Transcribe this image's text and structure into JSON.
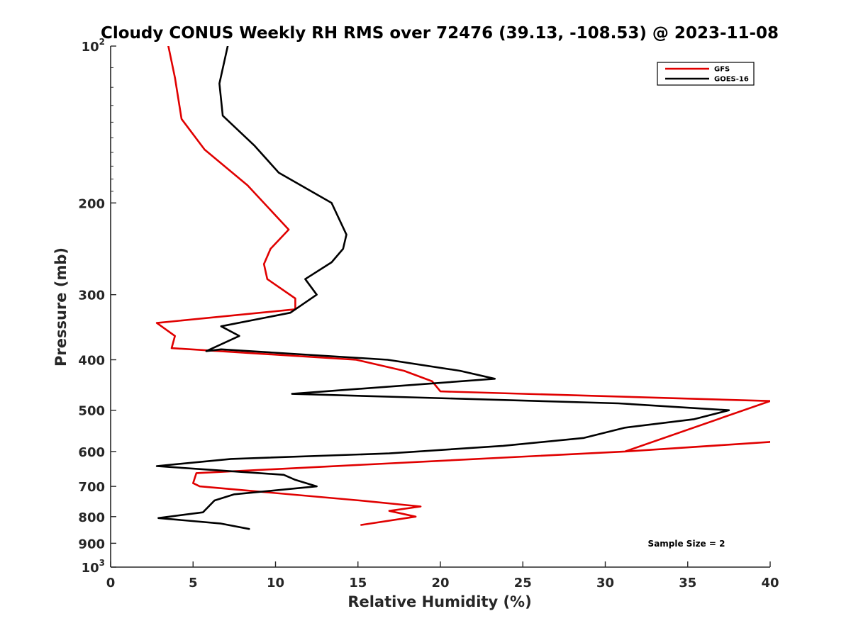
{
  "chart_data": {
    "type": "line",
    "title": "Cloudy CONUS Weekly RH RMS over 72476 (39.13, -108.53) @ 2023-11-08",
    "xlabel": "Relative Humidity (%)",
    "ylabel": "Pressure (mb)",
    "xlim": [
      0,
      40
    ],
    "ylim": [
      100,
      1000
    ],
    "y_scale": "log",
    "y_reversed": true,
    "grid": false,
    "legend_position": "top-right",
    "x_ticks": [
      0,
      5,
      10,
      15,
      20,
      25,
      30,
      35,
      40
    ],
    "x_tick_labels": [
      "0",
      "5",
      "10",
      "15",
      "20",
      "25",
      "30",
      "35",
      "40"
    ],
    "y_ticks": [
      100,
      200,
      300,
      400,
      500,
      600,
      700,
      800,
      900,
      1000
    ],
    "y_tick_labels": [
      {
        "base": "10",
        "sup": "2"
      },
      {
        "base": "200",
        "sup": ""
      },
      {
        "base": "300",
        "sup": ""
      },
      {
        "base": "400",
        "sup": ""
      },
      {
        "base": "500",
        "sup": ""
      },
      {
        "base": "600",
        "sup": ""
      },
      {
        "base": "700",
        "sup": ""
      },
      {
        "base": "800",
        "sup": ""
      },
      {
        "base": "900",
        "sup": ""
      },
      {
        "base": "10",
        "sup": "3"
      }
    ],
    "annotation": "Sample Size = 2",
    "series": [
      {
        "name": "GFS",
        "color": "#e00000",
        "x": [
          3.5,
          3.9,
          4.3,
          5.7,
          8.3,
          10.8,
          9.7,
          9.3,
          9.5,
          11.2,
          11.2,
          2.8,
          3.9,
          3.7,
          14.9,
          17.8,
          19.5,
          20.0,
          40.0,
          31.2,
          40.0,
          38.3,
          31.2,
          5.2,
          5.0,
          5.4,
          15.1,
          18.8,
          16.9,
          18.5,
          15.2
        ],
        "y": [
          100,
          115,
          138,
          158,
          185,
          225,
          245,
          262,
          280,
          305,
          320,
          340,
          360,
          380,
          400,
          420,
          440,
          460,
          480,
          600,
          575,
          580,
          600,
          660,
          690,
          700,
          745,
          765,
          780,
          800,
          830
        ]
      },
      {
        "name": "GOES-16",
        "color": "#000000",
        "x": [
          7.1,
          6.6,
          6.8,
          8.7,
          10.2,
          13.4,
          14.3,
          14.1,
          13.4,
          11.8,
          12.5,
          10.9,
          6.7,
          7.8,
          5.8,
          6.7,
          16.8,
          21.2,
          23.3,
          11.0,
          30.8,
          37.5,
          35.4,
          31.2,
          28.7,
          23.8,
          16.9,
          7.3,
          2.8,
          10.5,
          11.2,
          12.5,
          7.5,
          6.3,
          5.6,
          2.9,
          6.7,
          8.4
        ],
        "y": [
          100,
          118,
          136,
          155,
          175,
          200,
          230,
          245,
          260,
          280,
          300,
          325,
          345,
          360,
          385,
          382,
          400,
          420,
          435,
          465,
          485,
          500,
          520,
          540,
          565,
          585,
          605,
          620,
          640,
          665,
          680,
          700,
          725,
          745,
          785,
          805,
          825,
          845
        ]
      }
    ]
  }
}
